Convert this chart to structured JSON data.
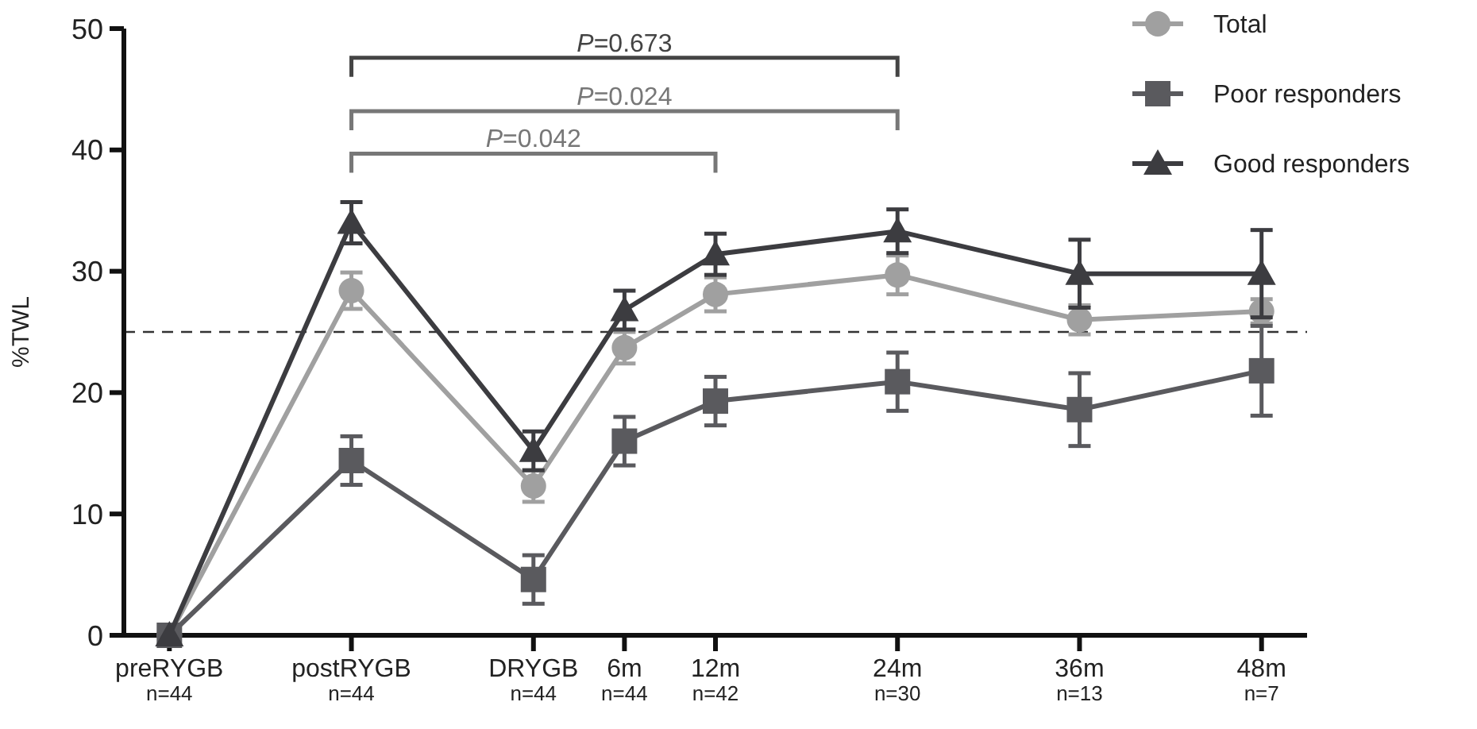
{
  "chart_data": {
    "type": "line",
    "ylabel": "%TWL",
    "categories": [
      "preRYGB\nn=44",
      null,
      "postRYGB\nn=44",
      null,
      "DRYGB\nn=44",
      "6m\nn=44",
      "12m\nn=42",
      null,
      "24m\nn=30",
      null,
      "36m\nn=13",
      null,
      "48m\nn=7"
    ],
    "series": [
      {
        "name": "Total",
        "color": "#a0a0a0",
        "marker": "circle",
        "values": [
          0,
          null,
          28.4,
          null,
          12.3,
          23.7,
          28.1,
          null,
          29.7,
          null,
          26.0,
          null,
          26.7
        ],
        "errors": [
          null,
          null,
          1.5,
          null,
          1.3,
          1.3,
          1.4,
          null,
          1.6,
          null,
          1.2,
          null,
          1.0
        ]
      },
      {
        "name": "Poor responders",
        "color": "#5a5a5e",
        "marker": "square",
        "values": [
          0,
          null,
          14.4,
          null,
          4.6,
          16.0,
          19.3,
          null,
          20.9,
          null,
          18.6,
          null,
          21.8
        ],
        "errors": [
          null,
          null,
          2.0,
          null,
          2.0,
          2.0,
          2.0,
          null,
          2.4,
          null,
          3.0,
          null,
          3.7
        ]
      },
      {
        "name": "Good responders",
        "color": "#3c3c40",
        "marker": "triangle",
        "values": [
          0,
          null,
          34.0,
          null,
          15.2,
          26.8,
          31.4,
          null,
          33.3,
          null,
          29.8,
          null,
          29.8
        ],
        "errors": [
          null,
          null,
          1.7,
          null,
          1.6,
          1.6,
          1.7,
          null,
          1.8,
          null,
          2.8,
          null,
          3.6
        ]
      }
    ],
    "ylim": [
      0,
      50
    ],
    "yticks": [
      0,
      10,
      20,
      30,
      40,
      50
    ],
    "grid": false,
    "legend": "top right",
    "ref_lines": [
      {
        "axis": "y",
        "value": 25,
        "color": "#333333",
        "line_style": "dashed"
      }
    ],
    "annotations": [
      "P=0.673",
      "P=0.024",
      "P=0.042"
    ]
  }
}
